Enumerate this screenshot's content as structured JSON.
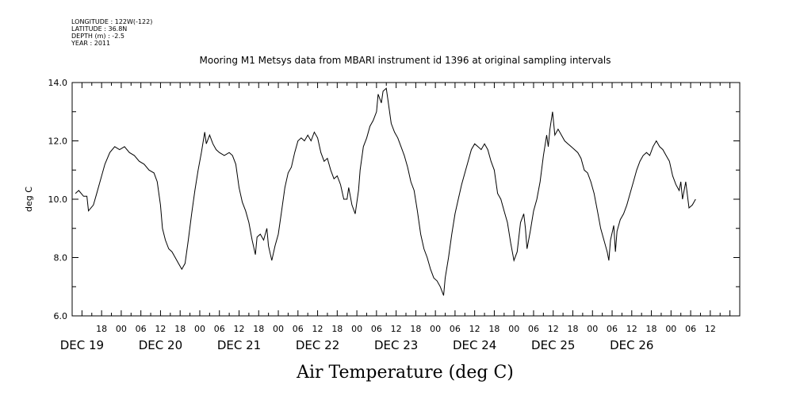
{
  "meta": {
    "longitude": "LONGITUDE : 122W(-122)",
    "latitude": "LATITUDE : 36.8N",
    "depth": "DEPTH (m) : -2.5",
    "year": "YEAR : 2011"
  },
  "chart_data": {
    "type": "line",
    "title": "Mooring M1 Metsys data from MBARI instrument id 1396 at original sampling intervals",
    "xlabel": "Air Temperature (deg C)",
    "ylabel": "deg C",
    "ylim": [
      6.0,
      14.0
    ],
    "yticks": [
      "6.0",
      "8.0",
      "10.0",
      "12.0",
      "14.0"
    ],
    "xlim_hours": [
      9,
      213
    ],
    "hour_ticks": [
      {
        "h": 18,
        "label": "18"
      },
      {
        "h": 24,
        "label": "00"
      },
      {
        "h": 30,
        "label": "06"
      },
      {
        "h": 36,
        "label": "12"
      },
      {
        "h": 42,
        "label": "18"
      },
      {
        "h": 48,
        "label": "00"
      },
      {
        "h": 54,
        "label": "06"
      },
      {
        "h": 60,
        "label": "12"
      },
      {
        "h": 66,
        "label": "18"
      },
      {
        "h": 72,
        "label": "00"
      },
      {
        "h": 78,
        "label": "06"
      },
      {
        "h": 84,
        "label": "12"
      },
      {
        "h": 90,
        "label": "18"
      },
      {
        "h": 96,
        "label": "00"
      },
      {
        "h": 102,
        "label": "06"
      },
      {
        "h": 108,
        "label": "12"
      },
      {
        "h": 114,
        "label": "18"
      },
      {
        "h": 120,
        "label": "00"
      },
      {
        "h": 126,
        "label": "06"
      },
      {
        "h": 132,
        "label": "12"
      },
      {
        "h": 138,
        "label": "18"
      },
      {
        "h": 144,
        "label": "00"
      },
      {
        "h": 150,
        "label": "06"
      },
      {
        "h": 156,
        "label": "12"
      },
      {
        "h": 162,
        "label": "18"
      },
      {
        "h": 168,
        "label": "00"
      },
      {
        "h": 174,
        "label": "06"
      },
      {
        "h": 180,
        "label": "12"
      },
      {
        "h": 186,
        "label": "18"
      },
      {
        "h": 192,
        "label": "00"
      },
      {
        "h": 198,
        "label": "06"
      },
      {
        "h": 204,
        "label": "12"
      }
    ],
    "date_labels": [
      {
        "h": 12,
        "label": "DEC 19"
      },
      {
        "h": 36,
        "label": "DEC 20"
      },
      {
        "h": 60,
        "label": "DEC 21"
      },
      {
        "h": 84,
        "label": "DEC 22"
      },
      {
        "h": 108,
        "label": "DEC 23"
      },
      {
        "h": 132,
        "label": "DEC 24"
      },
      {
        "h": 156,
        "label": "DEC 25"
      },
      {
        "h": 180,
        "label": "DEC 26"
      }
    ],
    "series": [
      {
        "values": [
          [
            10.0,
            10.2
          ],
          [
            11.0,
            10.3
          ],
          [
            12.5,
            10.1
          ],
          [
            13.5,
            10.1
          ],
          [
            14.0,
            9.6
          ],
          [
            15.5,
            9.8
          ],
          [
            16.5,
            10.2
          ],
          [
            17.5,
            10.6
          ],
          [
            19.0,
            11.2
          ],
          [
            20.5,
            11.6
          ],
          [
            22.0,
            11.8
          ],
          [
            23.5,
            11.7
          ],
          [
            25.0,
            11.8
          ],
          [
            26.5,
            11.6
          ],
          [
            28.0,
            11.5
          ],
          [
            29.5,
            11.3
          ],
          [
            31.0,
            11.2
          ],
          [
            32.5,
            11.0
          ],
          [
            34.0,
            10.9
          ],
          [
            35.0,
            10.6
          ],
          [
            36.0,
            9.8
          ],
          [
            36.6,
            9.0
          ],
          [
            37.5,
            8.6
          ],
          [
            38.5,
            8.3
          ],
          [
            39.5,
            8.2
          ],
          [
            40.5,
            8.0
          ],
          [
            41.5,
            7.8
          ],
          [
            42.5,
            7.6
          ],
          [
            43.5,
            7.8
          ],
          [
            44.5,
            8.6
          ],
          [
            45.5,
            9.5
          ],
          [
            46.5,
            10.3
          ],
          [
            47.5,
            11.0
          ],
          [
            48.5,
            11.6
          ],
          [
            49.5,
            12.3
          ],
          [
            50.0,
            11.9
          ],
          [
            51.0,
            12.2
          ],
          [
            52.0,
            11.9
          ],
          [
            53.0,
            11.7
          ],
          [
            54.0,
            11.6
          ],
          [
            55.5,
            11.5
          ],
          [
            57.0,
            11.6
          ],
          [
            58.0,
            11.5
          ],
          [
            59.0,
            11.2
          ],
          [
            60.0,
            10.4
          ],
          [
            61.0,
            9.9
          ],
          [
            62.0,
            9.6
          ],
          [
            63.0,
            9.2
          ],
          [
            64.0,
            8.6
          ],
          [
            65.0,
            8.1
          ],
          [
            65.5,
            8.7
          ],
          [
            66.5,
            8.8
          ],
          [
            67.5,
            8.6
          ],
          [
            68.5,
            9.0
          ],
          [
            69.0,
            8.4
          ],
          [
            70.0,
            7.9
          ],
          [
            71.0,
            8.4
          ],
          [
            72.0,
            8.8
          ],
          [
            73.0,
            9.6
          ],
          [
            74.0,
            10.4
          ],
          [
            75.0,
            10.9
          ],
          [
            76.0,
            11.1
          ],
          [
            77.0,
            11.6
          ],
          [
            78.0,
            12.0
          ],
          [
            79.0,
            12.1
          ],
          [
            80.0,
            12.0
          ],
          [
            81.0,
            12.2
          ],
          [
            82.0,
            12.0
          ],
          [
            83.0,
            12.3
          ],
          [
            84.0,
            12.1
          ],
          [
            85.0,
            11.6
          ],
          [
            86.0,
            11.3
          ],
          [
            87.0,
            11.4
          ],
          [
            88.0,
            11.0
          ],
          [
            89.0,
            10.7
          ],
          [
            90.0,
            10.8
          ],
          [
            91.0,
            10.5
          ],
          [
            92.0,
            10.0
          ],
          [
            93.0,
            10.0
          ],
          [
            93.5,
            10.4
          ],
          [
            94.5,
            9.8
          ],
          [
            95.5,
            9.5
          ],
          [
            96.5,
            10.3
          ],
          [
            97.0,
            11.0
          ],
          [
            98.0,
            11.8
          ],
          [
            99.0,
            12.1
          ],
          [
            100.0,
            12.5
          ],
          [
            101.0,
            12.7
          ],
          [
            102.0,
            13.0
          ],
          [
            102.5,
            13.6
          ],
          [
            103.5,
            13.3
          ],
          [
            104.0,
            13.7
          ],
          [
            105.0,
            13.8
          ],
          [
            105.5,
            13.4
          ],
          [
            106.5,
            12.6
          ],
          [
            107.5,
            12.3
          ],
          [
            108.5,
            12.1
          ],
          [
            109.5,
            11.8
          ],
          [
            110.5,
            11.5
          ],
          [
            111.5,
            11.1
          ],
          [
            112.5,
            10.6
          ],
          [
            113.5,
            10.3
          ],
          [
            114.5,
            9.6
          ],
          [
            115.5,
            8.8
          ],
          [
            116.5,
            8.3
          ],
          [
            117.5,
            8.0
          ],
          [
            118.5,
            7.6
          ],
          [
            119.5,
            7.3
          ],
          [
            120.5,
            7.2
          ],
          [
            121.5,
            7.0
          ],
          [
            122.5,
            6.7
          ],
          [
            123.0,
            7.3
          ],
          [
            124.0,
            8.0
          ],
          [
            125.0,
            8.8
          ],
          [
            126.0,
            9.5
          ],
          [
            127.0,
            10.0
          ],
          [
            128.0,
            10.5
          ],
          [
            129.0,
            10.9
          ],
          [
            130.0,
            11.3
          ],
          [
            131.0,
            11.7
          ],
          [
            132.0,
            11.9
          ],
          [
            133.0,
            11.8
          ],
          [
            134.0,
            11.7
          ],
          [
            135.0,
            11.9
          ],
          [
            136.0,
            11.7
          ],
          [
            137.0,
            11.3
          ],
          [
            138.0,
            11.0
          ],
          [
            139.0,
            10.2
          ],
          [
            140.0,
            10.0
          ],
          [
            141.0,
            9.6
          ],
          [
            142.0,
            9.2
          ],
          [
            143.0,
            8.5
          ],
          [
            144.0,
            7.9
          ],
          [
            145.0,
            8.2
          ],
          [
            146.0,
            9.2
          ],
          [
            147.0,
            9.5
          ],
          [
            147.5,
            9.0
          ],
          [
            148.0,
            8.3
          ],
          [
            149.0,
            8.9
          ],
          [
            150.0,
            9.6
          ],
          [
            151.0,
            10.0
          ],
          [
            152.0,
            10.6
          ],
          [
            153.0,
            11.5
          ],
          [
            154.0,
            12.2
          ],
          [
            154.5,
            11.8
          ],
          [
            155.0,
            12.4
          ],
          [
            155.8,
            13.0
          ],
          [
            156.5,
            12.2
          ],
          [
            157.5,
            12.4
          ],
          [
            158.5,
            12.2
          ],
          [
            159.5,
            12.0
          ],
          [
            160.5,
            11.9
          ],
          [
            161.5,
            11.8
          ],
          [
            162.5,
            11.7
          ],
          [
            163.5,
            11.6
          ],
          [
            164.5,
            11.4
          ],
          [
            165.5,
            11.0
          ],
          [
            166.5,
            10.9
          ],
          [
            167.5,
            10.6
          ],
          [
            168.5,
            10.2
          ],
          [
            169.5,
            9.6
          ],
          [
            170.5,
            9.0
          ],
          [
            171.5,
            8.6
          ],
          [
            172.5,
            8.2
          ],
          [
            173.0,
            7.9
          ],
          [
            173.5,
            8.6
          ],
          [
            174.5,
            9.1
          ],
          [
            175.0,
            8.2
          ],
          [
            175.5,
            8.9
          ],
          [
            176.5,
            9.3
          ],
          [
            177.5,
            9.5
          ],
          [
            178.5,
            9.8
          ],
          [
            179.5,
            10.2
          ],
          [
            180.5,
            10.6
          ],
          [
            181.5,
            11.0
          ],
          [
            182.5,
            11.3
          ],
          [
            183.5,
            11.5
          ],
          [
            184.5,
            11.6
          ],
          [
            185.5,
            11.5
          ],
          [
            186.5,
            11.8
          ],
          [
            187.5,
            12.0
          ],
          [
            188.5,
            11.8
          ],
          [
            189.5,
            11.7
          ],
          [
            190.5,
            11.5
          ],
          [
            191.5,
            11.3
          ],
          [
            192.5,
            10.8
          ],
          [
            193.5,
            10.5
          ],
          [
            194.5,
            10.3
          ],
          [
            195.0,
            10.6
          ],
          [
            195.5,
            10.0
          ],
          [
            196.5,
            10.6
          ],
          [
            197.5,
            9.7
          ],
          [
            198.5,
            9.8
          ],
          [
            199.5,
            10.0
          ]
        ]
      }
    ]
  }
}
